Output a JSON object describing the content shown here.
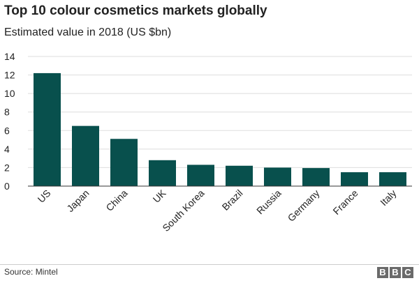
{
  "title": "Top 10 colour cosmetics markets globally",
  "subtitle": "Estimated value in 2018 (US $bn)",
  "source": "Source: Mintel",
  "logo": [
    "B",
    "B",
    "C"
  ],
  "colors": {
    "bar": "#08504d",
    "grid": "#dddddd",
    "axis": "#333333",
    "text": "#222222"
  },
  "chart_data": {
    "type": "bar",
    "categories": [
      "US",
      "Japan",
      "China",
      "UK",
      "South Korea",
      "Brazil",
      "Russia",
      "Germany",
      "France",
      "Italy"
    ],
    "values": [
      12.2,
      6.5,
      5.1,
      2.8,
      2.3,
      2.2,
      2.0,
      1.95,
      1.5,
      1.5
    ],
    "title": "Top 10 colour cosmetics markets globally",
    "subtitle": "Estimated value in 2018 (US $bn)",
    "ylim": [
      0,
      14
    ],
    "yticks": [
      "0",
      "2",
      "4",
      "6",
      "8",
      "10",
      "12",
      "14"
    ],
    "grid": true
  }
}
